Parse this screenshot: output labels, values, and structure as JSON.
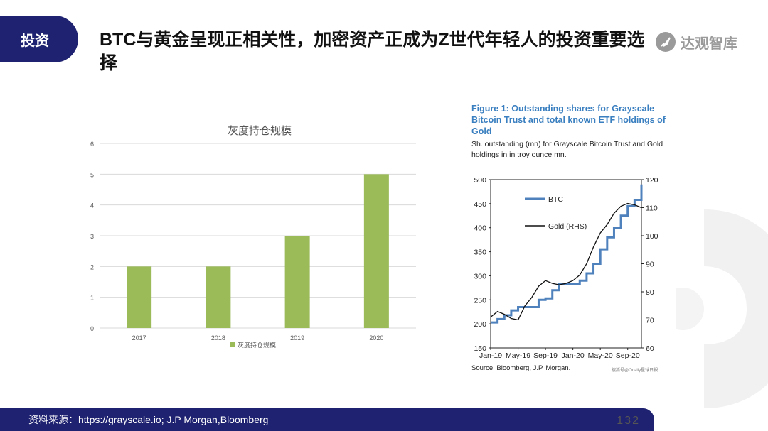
{
  "section_tag": "投资",
  "page_title": "BTC与黄金呈现正相关性，加密资产正成为Z世代年轻人的投资重要选择",
  "logo": {
    "text": "达观智库"
  },
  "footer": {
    "source": "资料来源：https://grayscale.io;  J.P Morgan,Bloomberg",
    "page_number": "132"
  },
  "colors": {
    "brand": "#1f2270",
    "bar": "#9bbb59",
    "btc_line": "#4f81bd",
    "gold_line": "#111111",
    "fig_title": "#3a7fc0"
  },
  "chart_data": [
    {
      "type": "bar",
      "title": "灰度持仓规模",
      "categories": [
        "2017",
        "2018",
        "2019",
        "2020"
      ],
      "series": [
        {
          "name": "灰度持仓规模",
          "values": [
            2,
            2,
            3,
            5
          ]
        }
      ],
      "ylim": [
        0,
        6
      ],
      "yticks": [
        "0",
        "1",
        "2",
        "3",
        "4",
        "5",
        "6"
      ],
      "grid": true,
      "legend": "bottom"
    },
    {
      "type": "line",
      "title": "Figure 1: Outstanding shares for Grayscale Bitcoin Trust and total known ETF holdings of Gold",
      "subtitle": "Sh. outstanding (mn) for Grayscale Bitcoin Trust and Gold holdings in in troy ounce mn.",
      "source": "Source: Bloomberg, J.P. Morgan.",
      "watermark": "搜狐号@Odaily星球日报",
      "x_ticks": [
        "Jan-19",
        "May-19",
        "Sep-19",
        "Jan-20",
        "May-20",
        "Sep-20"
      ],
      "x_range": [
        "2019-01",
        "2020-11"
      ],
      "ylim_left": [
        150,
        500
      ],
      "yticks_left": [
        "150",
        "200",
        "250",
        "300",
        "350",
        "400",
        "450",
        "500"
      ],
      "ylim_right": [
        60,
        120
      ],
      "yticks_right": [
        "60",
        "70",
        "80",
        "90",
        "100",
        "110",
        "120"
      ],
      "legend": "top-left",
      "series": [
        {
          "name": "BTC",
          "axis": "left",
          "x": [
            "2019-01",
            "2019-02",
            "2019-03",
            "2019-04",
            "2019-05",
            "2019-06",
            "2019-07",
            "2019-08",
            "2019-09",
            "2019-10",
            "2019-11",
            "2019-12",
            "2020-01",
            "2020-02",
            "2020-03",
            "2020-04",
            "2020-05",
            "2020-06",
            "2020-07",
            "2020-08",
            "2020-09",
            "2020-10",
            "2020-11"
          ],
          "y": [
            203,
            210,
            218,
            228,
            235,
            235,
            235,
            250,
            253,
            270,
            283,
            283,
            283,
            290,
            305,
            325,
            355,
            380,
            400,
            425,
            445,
            458,
            490
          ]
        },
        {
          "name": "Gold (RHS)",
          "axis": "right",
          "x": [
            "2019-01",
            "2019-02",
            "2019-03",
            "2019-04",
            "2019-05",
            "2019-06",
            "2019-07",
            "2019-08",
            "2019-09",
            "2019-10",
            "2019-11",
            "2019-12",
            "2020-01",
            "2020-02",
            "2020-03",
            "2020-04",
            "2020-05",
            "2020-06",
            "2020-07",
            "2020-08",
            "2020-09",
            "2020-10",
            "2020-11"
          ],
          "y": [
            71,
            73,
            72,
            70.5,
            70,
            75,
            78,
            82,
            84,
            83,
            82.5,
            83,
            84,
            86,
            90,
            96,
            101,
            104,
            108,
            110.5,
            111.5,
            111,
            110
          ]
        }
      ]
    }
  ]
}
